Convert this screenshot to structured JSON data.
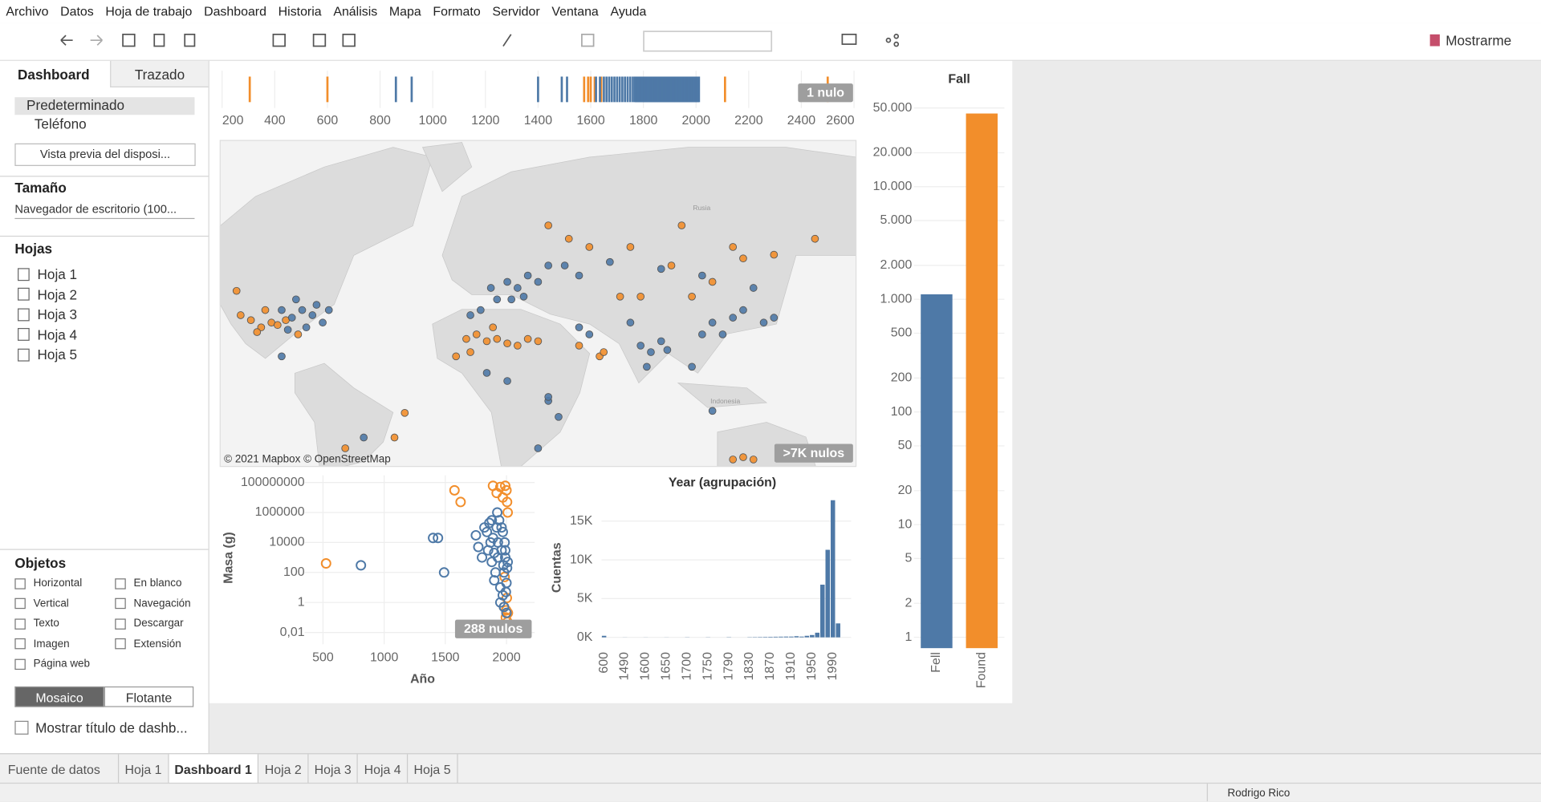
{
  "menu": [
    "Archivo",
    "Datos",
    "Hoja de trabajo",
    "Dashboard",
    "Historia",
    "Análisis",
    "Mapa",
    "Formato",
    "Servidor",
    "Ventana",
    "Ayuda"
  ],
  "toolbar": {
    "show_me": "Mostrarme"
  },
  "sidebar": {
    "tabs": [
      "Dashboard",
      "Trazado"
    ],
    "devices": [
      "Predeterminado",
      "Teléfono"
    ],
    "preview_button": "Vista previa del disposi...",
    "size": {
      "title": "Tamaño",
      "value": "Navegador de escritorio (100..."
    },
    "sheets": {
      "title": "Hojas",
      "items": [
        "Hoja 1",
        "Hoja 2",
        "Hoja 3",
        "Hoja 4",
        "Hoja 5"
      ]
    },
    "objects": {
      "title": "Objetos",
      "items": [
        "Horizontal",
        "En blanco",
        "Vertical",
        "Navegación",
        "Texto",
        "Descargar",
        "Imagen",
        "Extensión",
        "Página web"
      ]
    },
    "layout_buttons": [
      "Mosaico",
      "Flotante"
    ],
    "show_title": "Mostrar título de dashb..."
  },
  "tabs": [
    "Fuente de datos",
    "Hoja 1",
    "Dashboard 1",
    "Hoja 2",
    "Hoja 3",
    "Hoja 4",
    "Hoja 5"
  ],
  "status": {
    "user": "Rodrigo Rico"
  },
  "chart_data": [
    {
      "type": "strip",
      "xlim": [
        200,
        2600
      ],
      "xticks": [
        200,
        400,
        600,
        800,
        1000,
        1200,
        1400,
        1600,
        1800,
        2000,
        2200,
        2400,
        2600
      ],
      "null_label": "1 nulo",
      "series": [
        {
          "color": "#f28e2b",
          "values": [
            305,
            600,
            1575,
            1590,
            1600,
            1615,
            1640,
            2110,
            2500
          ]
        },
        {
          "color": "#4e79a7",
          "values": [
            860,
            920,
            1400,
            1490,
            1510,
            1620,
            1635,
            1650,
            1660,
            1670,
            1680,
            1690,
            1700,
            1710,
            1720,
            1730,
            1740,
            1750,
            1760,
            1768,
            1771,
            1774,
            1777,
            1780,
            1783,
            1786,
            1789,
            1792,
            1795,
            1798,
            1801,
            1804,
            1807,
            1810,
            1813,
            1816,
            1819,
            1822,
            1825,
            1828,
            1831,
            1834,
            1837,
            1840,
            1843,
            1846,
            1849,
            1852,
            1855,
            1858,
            1861,
            1864,
            1867,
            1870,
            1873,
            1876,
            1879,
            1882,
            1885,
            1888,
            1891,
            1894,
            1897,
            1900,
            1903,
            1906,
            1909,
            1912,
            1915,
            1918,
            1921,
            1924,
            1927,
            1930,
            1933,
            1936,
            1939,
            1942,
            1945,
            1948,
            1951,
            1954,
            1957,
            1960,
            1963,
            1966,
            1969,
            1972,
            1975,
            1978,
            1981,
            1984,
            1987,
            1990,
            1993,
            1996,
            1999,
            2002,
            2005,
            2008,
            2011
          ]
        }
      ]
    },
    {
      "type": "map",
      "attribution": "© 2021 Mapbox © OpenStreetMap",
      "null_label": ">7K nulos",
      "place_labels": [
        "Rusia",
        "Indonesia"
      ],
      "xlim": [
        -130,
        180
      ],
      "ylim": [
        -33,
        78
      ],
      "series": [
        {
          "color": "#f28e2b",
          "x": [
            -110,
            -105,
            -115,
            -102,
            -98,
            -120,
            -108,
            -112,
            -10,
            -5,
            0,
            5,
            10,
            15,
            20,
            25,
            -15,
            -8,
            55,
            57,
            45,
            70,
            95,
            120,
            140,
            160,
            90,
            110,
            125,
            50,
            40,
            30,
            120,
            125,
            130,
            -69,
            -45,
            65,
            75,
            100,
            -122,
            -92,
            3,
            -40,
            150
          ],
          "values": [
            33,
            35,
            36,
            34,
            36,
            38,
            40,
            31,
            28,
            30,
            27,
            28,
            26,
            25,
            28,
            27,
            20,
            22,
            20,
            22,
            25,
            60,
            65,
            60,
            58,
            62,
            55,
            50,
            57,
            60,
            62,
            65,
            -30,
            -29,
            -30,
            -25,
            -20,
            45,
            45,
            45,
            47,
            30,
            33,
            -8,
            -28
          ]
        },
        {
          "color": "#4e79a7",
          "x": [
            -85,
            -90,
            -95,
            -80,
            -100,
            -88,
            -93,
            -77,
            -83,
            -97,
            -100,
            2,
            10,
            15,
            20,
            25,
            30,
            5,
            -3,
            12,
            18,
            38,
            45,
            60,
            85,
            105,
            130,
            75,
            80,
            78,
            85,
            88,
            110,
            115,
            120,
            105,
            135,
            140,
            0,
            10,
            30,
            35,
            25,
            30,
            45,
            50,
            -60,
            110,
            -8,
            100,
            125,
            70
          ],
          "values": [
            38,
            40,
            37,
            35,
            40,
            33,
            44,
            40,
            42,
            32,
            20,
            48,
            50,
            48,
            52,
            50,
            55,
            44,
            40,
            44,
            45,
            55,
            52,
            56,
            54,
            52,
            48,
            25,
            22,
            15,
            27,
            23,
            35,
            30,
            37,
            30,
            35,
            37,
            12,
            8,
            -2,
            -10,
            -25,
            0,
            33,
            30,
            -20,
            -7,
            38,
            15,
            40,
            35
          ]
        }
      ]
    },
    {
      "type": "scatter",
      "x_label": "Año",
      "y_label": "Masa (g)",
      "null_label": "288 nulos",
      "log_y": true,
      "grid": true,
      "xlim": [
        350,
        2150
      ],
      "xticks": [
        500,
        1000,
        1500,
        2000
      ],
      "ylim": [
        0.003,
        300000000
      ],
      "yticks": [
        {
          "value": 0.01,
          "label": "0,01"
        },
        1,
        100,
        10000,
        1000000,
        100000000
      ],
      "series": [
        {
          "color": "#f28e2b",
          "x": [
            525,
            1575,
            1625,
            1890,
            1920,
            1950,
            1970,
            1990,
            2000,
            2005,
            2010,
            1980,
            1995,
            2003,
            2008,
            1998,
            2012,
            1985
          ],
          "values": [
            400,
            30000000,
            5000000,
            60000000,
            20000000,
            50000000,
            10000000,
            60000000,
            30000000,
            5000000,
            1000000,
            0.5,
            0.1,
            2,
            0.05,
            0.3,
            0.2,
            50
          ]
        },
        {
          "color": "#4e79a7",
          "x": [
            810,
            1400,
            1440,
            1490,
            1750,
            1770,
            1800,
            1820,
            1840,
            1850,
            1860,
            1870,
            1880,
            1890,
            1900,
            1910,
            1920,
            1930,
            1940,
            1950,
            1960,
            1970,
            1980,
            1990,
            2000,
            2010,
            1900,
            1950,
            1980,
            1995,
            2005,
            1930,
            1960,
            1975,
            1985,
            1880,
            1925,
            1990,
            2000,
            1970
          ],
          "values": [
            300,
            20000,
            20000,
            100,
            30000,
            5000,
            1000,
            100000,
            50000,
            3000,
            200000,
            10000,
            500,
            20000,
            2000,
            100,
            100000,
            1000,
            300000,
            10,
            3000,
            50000,
            100,
            1000,
            20,
            500,
            30,
            1,
            0.5,
            5,
            200,
            10000,
            100000,
            300,
            10000,
            300000,
            1000000,
            3000,
            0.2,
            3
          ]
        }
      ]
    },
    {
      "type": "bar",
      "title": "Year (agrupación)",
      "y_label": "Cuentas",
      "color": "#4e79a7",
      "grid": true,
      "categories": [
        "600",
        null,
        null,
        null,
        "1490",
        null,
        null,
        null,
        "1600",
        null,
        null,
        null,
        "1650",
        null,
        null,
        null,
        "1700",
        null,
        null,
        null,
        "1750",
        null,
        null,
        null,
        "1790",
        null,
        null,
        null,
        "1830",
        null,
        null,
        null,
        "1870",
        null,
        null,
        null,
        "1910",
        null,
        null,
        null,
        "1950",
        null,
        null,
        null,
        "1990",
        null,
        null,
        null
      ],
      "values": [
        200,
        0,
        0,
        0,
        10,
        0,
        0,
        0,
        10,
        0,
        0,
        0,
        10,
        0,
        0,
        0,
        20,
        0,
        0,
        0,
        20,
        0,
        0,
        0,
        30,
        0,
        0,
        0,
        30,
        40,
        50,
        60,
        70,
        80,
        90,
        100,
        100,
        150,
        100,
        200,
        300,
        600,
        6800,
        11300,
        17700,
        1800,
        0,
        0
      ],
      "ylim": [
        0,
        18000
      ],
      "yticks": [
        {
          "value": 0,
          "label": "0K"
        },
        {
          "value": 5000,
          "label": "5K"
        },
        {
          "value": 10000,
          "label": "10K"
        },
        {
          "value": 15000,
          "label": "15K"
        }
      ]
    },
    {
      "type": "bar",
      "title": "Fall",
      "categories": [
        "Fell",
        "Found"
      ],
      "values": [
        1107,
        44609
      ],
      "colors": [
        "#4e79a7",
        "#f28e2b"
      ],
      "log_y": true,
      "grid": true,
      "ylim": [
        0.8,
        61000
      ],
      "yticks": [
        1,
        2,
        5,
        10,
        20,
        50,
        100,
        200,
        500,
        {
          "value": 1000,
          "label": "1.000"
        },
        {
          "value": 2000,
          "label": "2.000"
        },
        {
          "value": 5000,
          "label": "5.000"
        },
        {
          "value": 10000,
          "label": "10.000"
        },
        {
          "value": 20000,
          "label": "20.000"
        },
        {
          "value": 50000,
          "label": "50.000"
        }
      ]
    }
  ]
}
